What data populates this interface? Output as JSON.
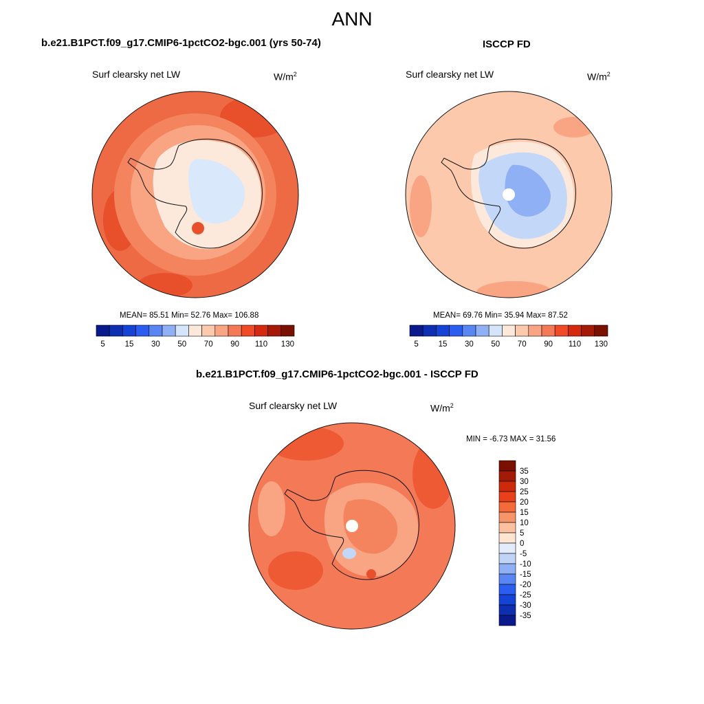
{
  "figure": {
    "title": "ANN"
  },
  "panels": [
    {
      "id": "model",
      "case_title": "b.e21.B1PCT.f09_g17.CMIP6-1pctCO2-bgc.001 (yrs 50-74)",
      "variable": "Surf clearsky net LW",
      "units_base": "W/m",
      "units_exp": "2",
      "stats": "MEAN=  85.51  Min=  52.76  Max= 106.88",
      "colorbar": {
        "ticks": [
          "5",
          "15",
          "30",
          "50",
          "70",
          "90",
          "110",
          "130"
        ],
        "colors": [
          "#0a1a8c",
          "#0d2fb0",
          "#1543d6",
          "#2b5ef0",
          "#5a86f3",
          "#8fb0f5",
          "#d4e4fb",
          "#fde9db",
          "#fcc9ad",
          "#f9a483",
          "#f47a57",
          "#ee4b26",
          "#d62a0f",
          "#a31a06",
          "#7a1000"
        ]
      }
    },
    {
      "id": "obs",
      "case_title": "ISCCP FD",
      "variable": "Surf clearsky net LW",
      "units_base": "W/m",
      "units_exp": "2",
      "stats": "MEAN=  69.76  Min=  35.94  Max=  87.52",
      "colorbar": {
        "ticks": [
          "5",
          "15",
          "30",
          "50",
          "70",
          "90",
          "110",
          "130"
        ],
        "colors": [
          "#0a1a8c",
          "#0d2fb0",
          "#1543d6",
          "#2b5ef0",
          "#5a86f3",
          "#8fb0f5",
          "#d4e4fb",
          "#fde9db",
          "#fcc9ad",
          "#f9a483",
          "#f47a57",
          "#ee4b26",
          "#d62a0f",
          "#a31a06",
          "#7a1000"
        ]
      }
    },
    {
      "id": "diff",
      "case_title": "b.e21.B1PCT.f09_g17.CMIP6-1pctCO2-bgc.001 - ISCCP FD",
      "variable": "Surf clearsky net LW",
      "units_base": "W/m",
      "units_exp": "2",
      "stats": "MIN =  -6.73 MAX =  31.56",
      "colorbar": {
        "ticks": [
          "35",
          "30",
          "25",
          "20",
          "15",
          "10",
          "5",
          "0",
          "-5",
          "-10",
          "-15",
          "-20",
          "-25",
          "-30",
          "-35"
        ],
        "colors": [
          "#7a1000",
          "#a31a06",
          "#cc2a0a",
          "#e8401a",
          "#f56a3a",
          "#f7956a",
          "#fbc1a0",
          "#fde5d2",
          "#e3ecfb",
          "#c0d4f7",
          "#8fb0f5",
          "#5a86f3",
          "#2b5ef0",
          "#1543d6",
          "#0d2fb0",
          "#0a1a8c"
        ]
      }
    }
  ]
}
